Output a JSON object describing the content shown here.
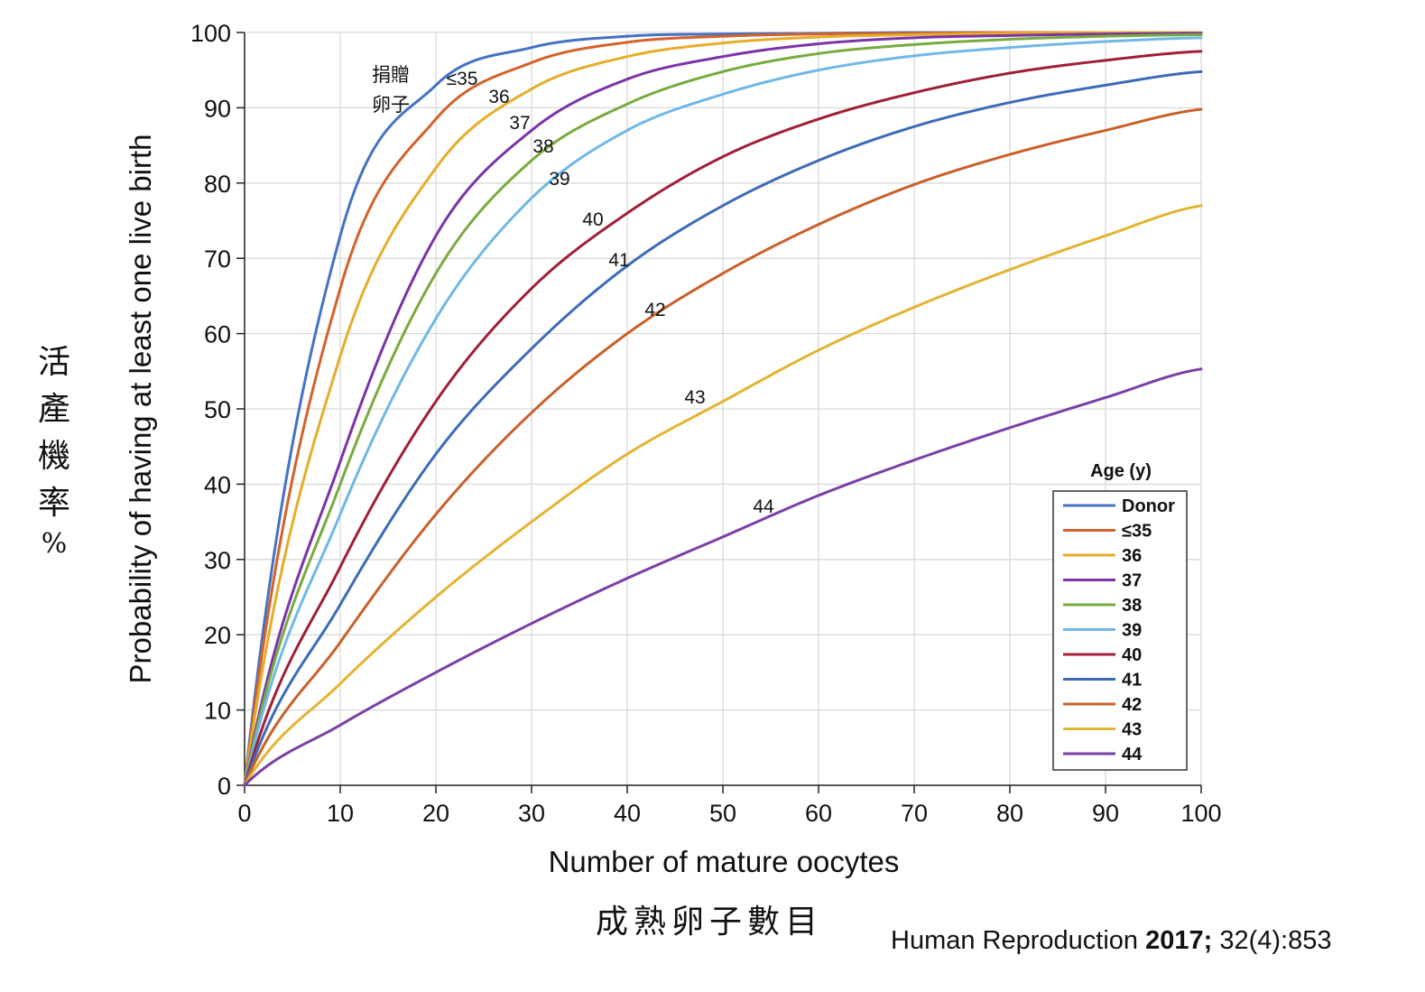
{
  "chart_data": {
    "type": "line",
    "xlabel": "Number of mature oocytes",
    "ylabel": "Probability of having at least one live birth",
    "xlabel_cn": "成熟卵子數目",
    "ylabel_cn": [
      "活",
      "產",
      "機",
      "率",
      "%"
    ],
    "xlim": [
      0,
      100
    ],
    "ylim": [
      0,
      100
    ],
    "xticks": [
      0,
      10,
      20,
      30,
      40,
      50,
      60,
      70,
      80,
      90,
      100
    ],
    "yticks": [
      0,
      10,
      20,
      30,
      40,
      50,
      60,
      70,
      80,
      90,
      100
    ],
    "grid": true,
    "x": [
      0,
      10,
      20,
      30,
      40,
      50,
      60,
      70,
      80,
      90,
      100
    ],
    "series": [
      {
        "name": "Donor",
        "color": "#4472c4",
        "values": [
          0,
          73,
          93,
          98,
          99.5,
          99.8,
          99.9,
          100,
          100,
          100,
          100
        ]
      },
      {
        "name": "≤35",
        "color": "#d4622c",
        "values": [
          0,
          66,
          88.5,
          96,
          98.7,
          99.5,
          99.8,
          99.9,
          100,
          100,
          100
        ]
      },
      {
        "name": "36",
        "color": "#e6ad2a",
        "values": [
          0,
          57,
          82,
          92.5,
          96.8,
          98.6,
          99.4,
          99.7,
          99.9,
          100,
          100
        ]
      },
      {
        "name": "37",
        "color": "#7b33a8",
        "values": [
          0,
          43,
          73,
          87,
          93.8,
          96.8,
          98.5,
          99.3,
          99.6,
          99.8,
          99.9
        ]
      },
      {
        "name": "38",
        "color": "#78ab3e",
        "values": [
          0,
          40,
          68,
          83,
          90.5,
          94.8,
          97.2,
          98.4,
          99.1,
          99.5,
          99.7
        ]
      },
      {
        "name": "39",
        "color": "#6fb8e6",
        "values": [
          0,
          36,
          62,
          78,
          87,
          91.8,
          95,
          96.9,
          98,
          98.8,
          99.3
        ]
      },
      {
        "name": "40",
        "color": "#a01f37",
        "values": [
          0,
          29,
          51,
          66,
          76,
          83.5,
          88.5,
          92,
          94.6,
          96.3,
          97.5
        ]
      },
      {
        "name": "41",
        "color": "#3d6bb8",
        "values": [
          0,
          24,
          44,
          58,
          69,
          77,
          83,
          87.5,
          90.7,
          93,
          94.8
        ]
      },
      {
        "name": "42",
        "color": "#c9602a",
        "values": [
          0,
          19,
          36,
          49.5,
          60,
          68,
          74.5,
          79.8,
          83.8,
          87,
          89.8
        ]
      },
      {
        "name": "43",
        "color": "#e3b431",
        "values": [
          0,
          13.5,
          25,
          35,
          44,
          51,
          57.8,
          63.5,
          68.5,
          73,
          77
        ]
      },
      {
        "name": "44",
        "color": "#7a3fa6",
        "values": [
          0,
          8,
          15,
          21.5,
          27.5,
          33,
          38.5,
          43.2,
          47.5,
          51.5,
          55.3
        ]
      }
    ],
    "annotations": [
      {
        "text": "≤35",
        "series": "≤35"
      },
      {
        "text": "36",
        "series": "36"
      },
      {
        "text": "37",
        "series": "37"
      },
      {
        "text": "38",
        "series": "38"
      },
      {
        "text": "39",
        "series": "39"
      },
      {
        "text": "40",
        "series": "40"
      },
      {
        "text": "41",
        "series": "41"
      },
      {
        "text": "42",
        "series": "42"
      },
      {
        "text": "43",
        "series": "43"
      },
      {
        "text": "44",
        "series": "44"
      }
    ],
    "donor_annotation": [
      "捐贈",
      "卵子"
    ],
    "legend": {
      "title": "Age (y)",
      "placement": "bottom-right"
    }
  },
  "citation": {
    "journal": "Human Reproduction",
    "year": "2017;",
    "volume": "32(4):853"
  }
}
